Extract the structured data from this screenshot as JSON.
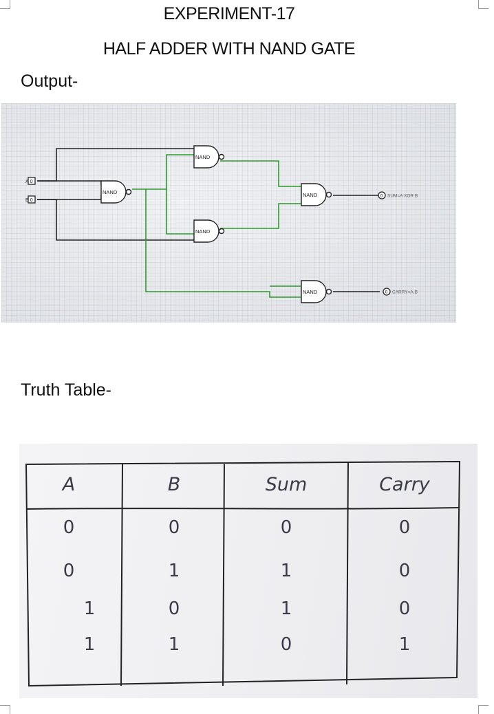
{
  "header": {
    "title": "EXPERIMENT-17",
    "subtitle": "HALF ADDER WITH NAND GATE"
  },
  "sections": {
    "output_label": "Output-",
    "truth_table_label": "Truth Table-"
  },
  "circuit": {
    "inputs": [
      {
        "label": "A",
        "value": "0"
      },
      {
        "label": "B",
        "value": "0"
      }
    ],
    "gate_label": "NAND",
    "outputs": [
      {
        "label": "SUM=A XOR B",
        "value": "0"
      },
      {
        "label": "CARRY=A.B",
        "value": "0"
      }
    ],
    "colors": {
      "wire_off": "#222222",
      "wire_on": "#2f9a2f",
      "gate_fill": "#ffffff"
    }
  },
  "truth_table": {
    "headers": [
      "A",
      "B",
      "Sum",
      "Carry"
    ],
    "rows": [
      [
        "0",
        "0",
        "0",
        "0"
      ],
      [
        "0",
        "1",
        "1",
        "0"
      ],
      [
        "1",
        "0",
        "1",
        "0"
      ],
      [
        "1",
        "1",
        "0",
        "1"
      ]
    ]
  }
}
